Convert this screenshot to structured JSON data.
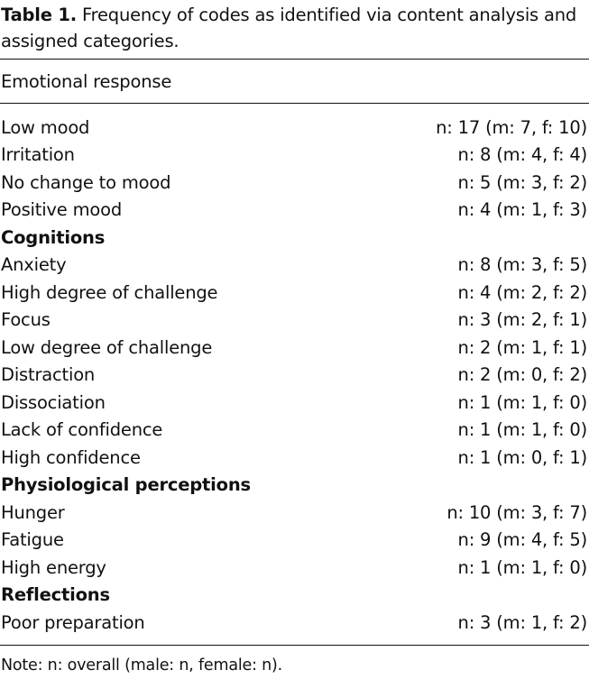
{
  "caption": {
    "label": "Table 1.",
    "text": " Frequency of codes as identified via content analysis and assigned categories."
  },
  "header": "Emotional response",
  "rows": [
    {
      "label": "Low mood",
      "value": "n: 17 (m: 7, f: 10)"
    },
    {
      "label": "Irritation",
      "value": "n: 8 (m: 4, f: 4)"
    },
    {
      "label": "No change to mood",
      "value": "n: 5 (m: 3, f: 2)"
    },
    {
      "label": "Positive mood",
      "value": "n: 4 (m: 1, f: 3)"
    },
    {
      "label": "Cognitions",
      "value": ""
    },
    {
      "label": "Anxiety",
      "value": "n: 8 (m: 3, f: 5)"
    },
    {
      "label": "High degree of challenge",
      "value": "n: 4 (m: 2, f: 2)"
    },
    {
      "label": "Focus",
      "value": "n: 3 (m: 2, f: 1)"
    },
    {
      "label": "Low degree of challenge",
      "value": "n: 2 (m: 1, f: 1)"
    },
    {
      "label": "Distraction",
      "value": "n: 2 (m: 0, f: 2)"
    },
    {
      "label": "Dissociation",
      "value": "n: 1 (m: 1, f: 0)"
    },
    {
      "label": "Lack of confidence",
      "value": "n: 1 (m: 1, f: 0)"
    },
    {
      "label": "High confidence",
      "value": "n: 1 (m: 0, f: 1)"
    },
    {
      "label": "Physiological perceptions",
      "value": ""
    },
    {
      "label": "Hunger",
      "value": "n: 10 (m: 3, f: 7)"
    },
    {
      "label": "Fatigue",
      "value": "n: 9 (m: 4, f: 5)"
    },
    {
      "label": "High energy",
      "value": "n: 1 (m: 1, f: 0)"
    },
    {
      "label": "Reflections",
      "value": ""
    },
    {
      "label": "Poor preparation",
      "value": "n: 3 (m: 1, f: 2)"
    }
  ],
  "note": "Note: n: overall (male: n, female: n)."
}
